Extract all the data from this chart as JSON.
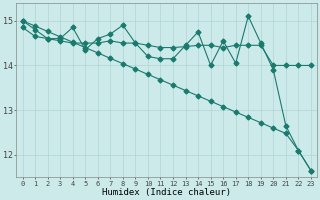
{
  "x": [
    0,
    1,
    2,
    3,
    4,
    5,
    6,
    7,
    8,
    9,
    10,
    11,
    12,
    13,
    14,
    15,
    16,
    17,
    18,
    19,
    20,
    21,
    22,
    23
  ],
  "line1": [
    15.0,
    14.8,
    14.6,
    14.6,
    14.85,
    14.35,
    14.6,
    14.7,
    14.9,
    14.5,
    14.2,
    14.15,
    14.15,
    14.45,
    14.75,
    14.0,
    14.55,
    14.05,
    15.1,
    14.5,
    13.9,
    12.65,
    12.1,
    11.65
  ],
  "line2": [
    14.85,
    14.65,
    14.6,
    14.55,
    14.5,
    14.5,
    14.5,
    14.55,
    14.5,
    14.5,
    14.45,
    14.4,
    14.4,
    14.42,
    14.45,
    14.45,
    14.4,
    14.45,
    14.45,
    14.45,
    14.0,
    14.0,
    14.0,
    14.0
  ],
  "line3": [
    15.0,
    14.88,
    14.76,
    14.64,
    14.52,
    14.4,
    14.28,
    14.16,
    14.04,
    13.92,
    13.8,
    13.68,
    13.56,
    13.44,
    13.32,
    13.2,
    13.08,
    12.96,
    12.84,
    12.72,
    12.6,
    12.48,
    12.1,
    11.65
  ],
  "color": "#1a7a6e",
  "bg_color": "#cdeaea",
  "grid_color": "#afd4d4",
  "xlabel": "Humidex (Indice chaleur)",
  "ylim": [
    11.5,
    15.4
  ],
  "xlim": [
    -0.5,
    23.5
  ],
  "yticks": [
    12,
    13,
    14,
    15
  ],
  "xticks": [
    0,
    1,
    2,
    3,
    4,
    5,
    6,
    7,
    8,
    9,
    10,
    11,
    12,
    13,
    14,
    15,
    16,
    17,
    18,
    19,
    20,
    21,
    22,
    23
  ]
}
